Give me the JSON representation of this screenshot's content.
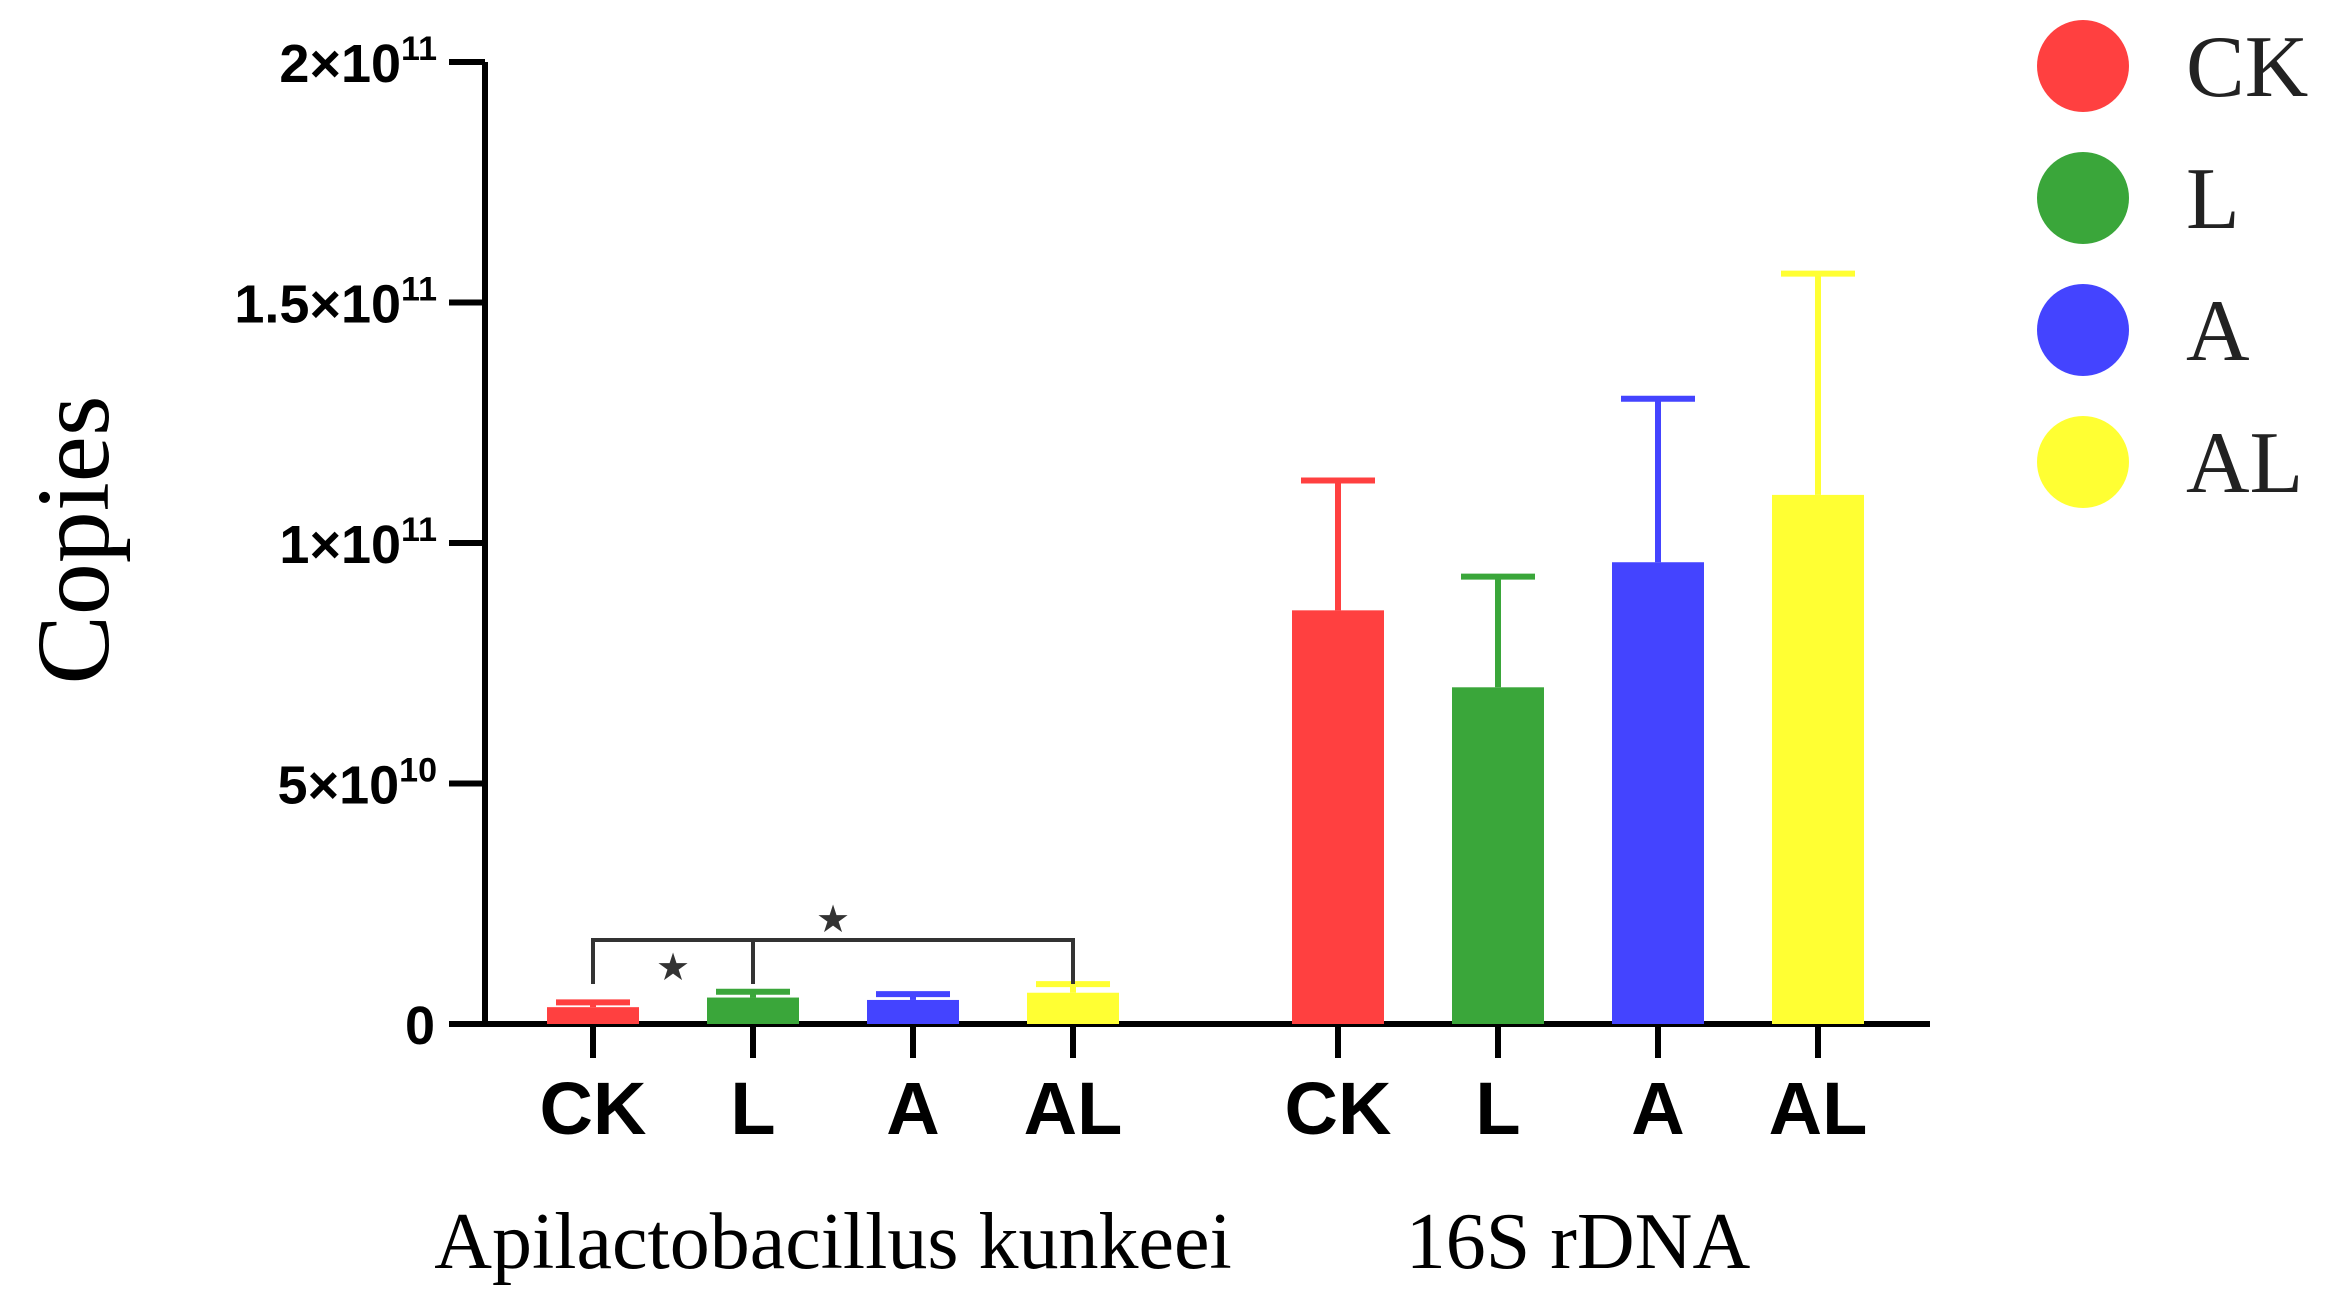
{
  "chart_data": {
    "type": "bar",
    "title": "",
    "ylabel": "Copies",
    "xlabel": "",
    "ylim": [
      0,
      200000000000
    ],
    "y_ticks": [
      {
        "value": 0,
        "mantissa": "0",
        "exponent": ""
      },
      {
        "value": 50000000000,
        "mantissa": "5×10",
        "exponent": "10"
      },
      {
        "value": 100000000000,
        "mantissa": "1×10",
        "exponent": "11"
      },
      {
        "value": 150000000000,
        "mantissa": "1.5×10",
        "exponent": "11"
      },
      {
        "value": 200000000000,
        "mantissa": "2×10",
        "exponent": "11"
      }
    ],
    "groups": [
      {
        "name": "Apilactobacillus kunkeei",
        "bars": [
          {
            "category": "CK",
            "value": 3500000000,
            "error": 1000000000,
            "color": "#ff4040"
          },
          {
            "category": "L",
            "value": 5500000000,
            "error": 1200000000,
            "color": "#3aa63a"
          },
          {
            "category": "A",
            "value": 5000000000,
            "error": 1200000000,
            "color": "#4444ff"
          },
          {
            "category": "AL",
            "value": 6500000000,
            "error": 1800000000,
            "color": "#ffff33"
          }
        ]
      },
      {
        "name": "16S rDNA",
        "bars": [
          {
            "category": "CK",
            "value": 86000000000,
            "error": 27000000000,
            "color": "#ff4040"
          },
          {
            "category": "L",
            "value": 70000000000,
            "error": 23000000000,
            "color": "#3aa63a"
          },
          {
            "category": "A",
            "value": 96000000000,
            "error": 34000000000,
            "color": "#4444ff"
          },
          {
            "category": "AL",
            "value": 110000000000,
            "error": 46000000000,
            "color": "#ffff33"
          }
        ]
      }
    ],
    "legend": {
      "position": "top-right",
      "entries": [
        {
          "label": "CK",
          "color": "#ff4040"
        },
        {
          "label": "L",
          "color": "#3aa63a"
        },
        {
          "label": "A",
          "color": "#4444ff"
        },
        {
          "label": "AL",
          "color": "#ffff33"
        }
      ]
    },
    "annotations": [
      {
        "type": "significance",
        "group": 0,
        "from": "CK",
        "to": "L",
        "symbol": "★"
      },
      {
        "type": "significance",
        "group": 0,
        "from": "CK",
        "to": "AL",
        "symbol": "★"
      }
    ]
  }
}
